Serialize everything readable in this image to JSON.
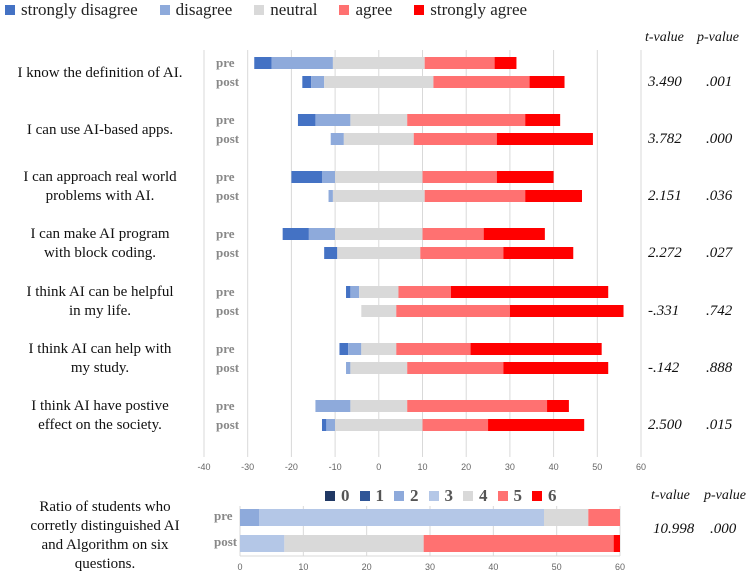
{
  "legend": {
    "items": [
      {
        "label": "strongly disagree",
        "color": "#4472c4"
      },
      {
        "label": "disagree",
        "color": "#8eaadb"
      },
      {
        "label": "neutral",
        "color": "#d9d9d9"
      },
      {
        "label": "agree",
        "color": "#ff7171"
      },
      {
        "label": "strongly agree",
        "color": "#ff0000"
      }
    ]
  },
  "headers": {
    "t": "t-value",
    "p": "p-value"
  },
  "chart_data": [
    {
      "type": "bar",
      "subtype": "diverging-stacked-horizontal",
      "categories_order": [
        "strongly disagree",
        "disagree",
        "neutral",
        "agree",
        "strongly agree"
      ],
      "xlim": [
        -40,
        60
      ],
      "xticks": [
        "-40",
        "-30",
        "-20",
        "-10",
        "0",
        "10",
        "20",
        "30",
        "40",
        "50",
        "60"
      ],
      "grid": true,
      "legend": "top",
      "rows": [
        {
          "label_lines": [
            "I know the definition of AI."
          ],
          "t": "3.490",
          "p": ".001",
          "pre": {
            "label": "pre",
            "counts": [
              4,
              14,
              21,
              16,
              5
            ]
          },
          "post": {
            "label": "post",
            "counts": [
              2,
              3,
              25,
              22,
              8
            ]
          }
        },
        {
          "label_lines": [
            "I can use AI-based apps."
          ],
          "t": "3.782",
          "p": ".000",
          "pre": {
            "label": "pre",
            "counts": [
              4,
              8,
              13,
              27,
              8
            ]
          },
          "post": {
            "label": "post",
            "counts": [
              0,
              3,
              16,
              19,
              22
            ]
          }
        },
        {
          "label_lines": [
            "I can approach real world",
            "problems with AI."
          ],
          "t": "2.151",
          "p": ".036",
          "pre": {
            "label": "pre",
            "counts": [
              7,
              3,
              20,
              17,
              13
            ]
          },
          "post": {
            "label": "post",
            "counts": [
              0,
              1,
              21,
              23,
              13
            ]
          }
        },
        {
          "label_lines": [
            "I can make AI program",
            "with block coding."
          ],
          "t": "2.272",
          "p": ".027",
          "pre": {
            "label": "pre",
            "counts": [
              6,
              6,
              20,
              14,
              14
            ]
          },
          "post": {
            "label": "post",
            "counts": [
              3,
              0,
              19,
              19,
              16
            ]
          }
        },
        {
          "label_lines": [
            "I think AI can be helpful",
            "in my life."
          ],
          "t": "-.331",
          "p": ".742",
          "pre": {
            "label": "pre",
            "counts": [
              1,
              2,
              9,
              12,
              36
            ]
          },
          "post": {
            "label": "post",
            "counts": [
              0,
              0,
              8,
              26,
              26
            ]
          }
        },
        {
          "label_lines": [
            "I think AI can help with",
            "my study."
          ],
          "t": "-.142",
          "p": ".888",
          "pre": {
            "label": "pre",
            "counts": [
              2,
              3,
              8,
              17,
              30
            ]
          },
          "post": {
            "label": "post",
            "counts": [
              0,
              1,
              13,
              22,
              24
            ]
          }
        },
        {
          "label_lines": [
            "I think AI have postive",
            "effect on the society."
          ],
          "t": "2.500",
          "p": ".015",
          "pre": {
            "label": "pre",
            "counts": [
              0,
              8,
              13,
              32,
              5
            ]
          },
          "post": {
            "label": "post",
            "counts": [
              1,
              2,
              20,
              15,
              22
            ]
          }
        }
      ]
    },
    {
      "type": "bar",
      "subtype": "stacked-horizontal",
      "title_lines": [
        "Ratio of students who",
        "corretly distinguished AI",
        "and Algorithm on six",
        "questions."
      ],
      "legend_items": [
        {
          "label": "0",
          "color": "#203864"
        },
        {
          "label": "1",
          "color": "#2f5597"
        },
        {
          "label": "2",
          "color": "#8eaadb"
        },
        {
          "label": "3",
          "color": "#b4c7e7"
        },
        {
          "label": "4",
          "color": "#d9d9d9"
        },
        {
          "label": "5",
          "color": "#ff7171"
        },
        {
          "label": "6",
          "color": "#ff0000"
        }
      ],
      "xlim": [
        0,
        60
      ],
      "xticks": [
        "0",
        "10",
        "20",
        "30",
        "40",
        "50",
        "60"
      ],
      "t": "10.998",
      "p": ".000",
      "series": [
        {
          "label": "pre",
          "counts": [
            0,
            0,
            3,
            45,
            7,
            5,
            0
          ]
        },
        {
          "label": "post",
          "counts": [
            0,
            0,
            0,
            7,
            22,
            30,
            1
          ]
        }
      ]
    }
  ]
}
